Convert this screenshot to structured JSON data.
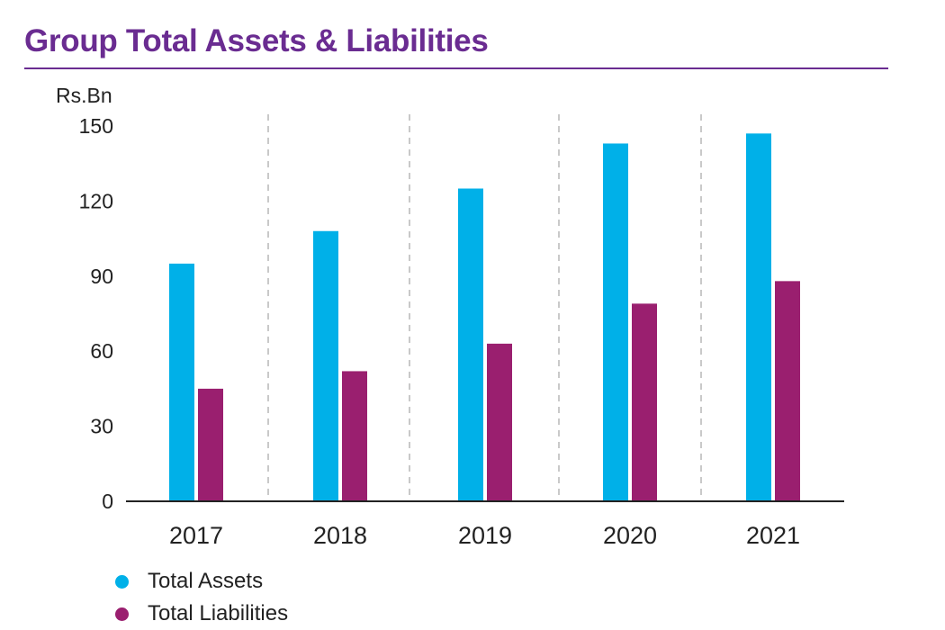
{
  "title": "Group Total Assets & Liabilities",
  "colors": {
    "title": "#6a2c91",
    "assets": "#00b0e8",
    "liabilities": "#9a1f6f"
  },
  "chart_data": {
    "type": "bar",
    "title": "Group Total Assets & Liabilities",
    "ylabel": "Rs.Bn",
    "xlabel": "",
    "categories": [
      "2017",
      "2018",
      "2019",
      "2020",
      "2021"
    ],
    "yticks": [
      0,
      30,
      60,
      90,
      120,
      150
    ],
    "ylim": [
      0,
      150
    ],
    "grid": "vertical dashed separators between years",
    "legend_position": "bottom-left",
    "series": [
      {
        "name": "Total Assets",
        "color": "#00b0e8",
        "values": [
          95,
          108,
          125,
          143,
          147
        ]
      },
      {
        "name": "Total Liabilities",
        "color": "#9a1f6f",
        "values": [
          45,
          52,
          63,
          79,
          88
        ]
      }
    ]
  }
}
